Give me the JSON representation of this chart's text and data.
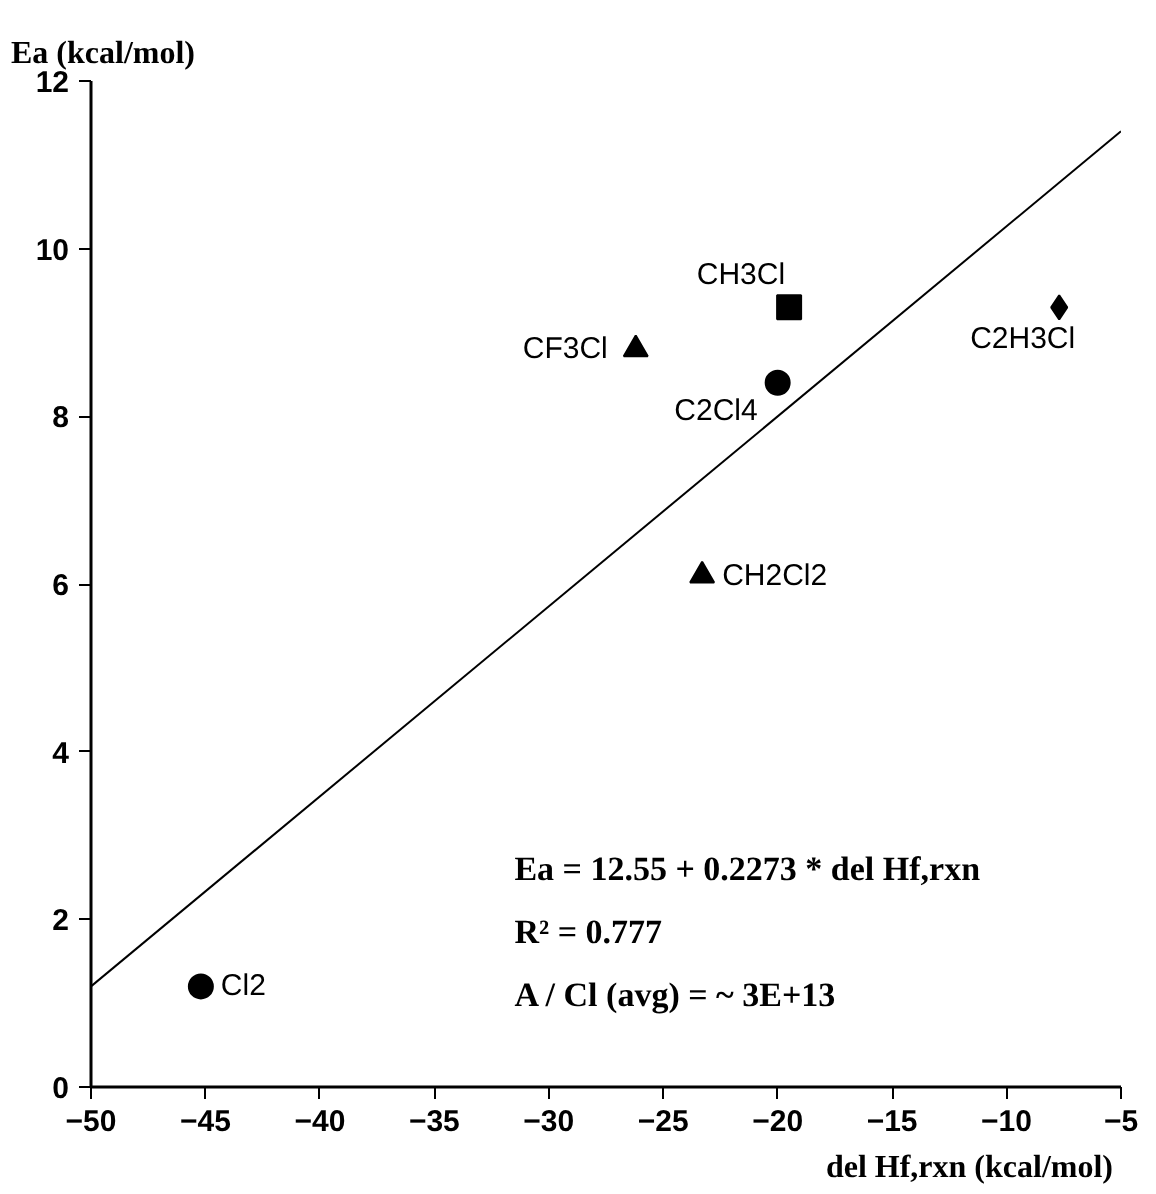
{
  "chart_data": {
    "type": "scatter",
    "xlabel": "del Hf,rxn  (kcal/mol)",
    "ylabel": "Ea (kcal/mol)",
    "xlim": [
      -50,
      -5
    ],
    "ylim": [
      0,
      12
    ],
    "xticks": [
      -50,
      -45,
      -40,
      -35,
      -30,
      -25,
      -20,
      -15,
      -10,
      -5
    ],
    "yticks": [
      0,
      2,
      4,
      6,
      8,
      10,
      12
    ],
    "grid": false,
    "series": [
      {
        "color": "#000000",
        "marker": "circle",
        "x": [
          -45.2
        ],
        "values": [
          1.2
        ]
      },
      {
        "color": "#000000",
        "marker": "square",
        "x": [
          -19.5
        ],
        "values": [
          9.3
        ]
      },
      {
        "color": "#000000",
        "marker": "triangle",
        "x": [
          -26.2
        ],
        "values": [
          8.8
        ]
      },
      {
        "color": "#000000",
        "marker": "circle",
        "x": [
          -20.0
        ],
        "values": [
          8.4
        ]
      },
      {
        "color": "#000000",
        "marker": "triangle",
        "x": [
          -23.3
        ],
        "values": [
          6.1
        ]
      },
      {
        "color": "#000000",
        "marker": "diamond",
        "x": [
          -7.7
        ],
        "values": [
          9.3
        ]
      },
      {
        "type": "line",
        "color": "#000000",
        "marker": "none",
        "x": [
          -50,
          -5
        ],
        "values": [
          1.2,
          11.4
        ]
      }
    ],
    "annotations": [
      {
        "text": "Cl2",
        "x": -45.2,
        "y": 1.2
      },
      {
        "text": "CH3Cl",
        "x": -19.5,
        "y": 9.3
      },
      {
        "text": "CF3Cl",
        "x": -26.2,
        "y": 8.8
      },
      {
        "text": "C2Cl4",
        "x": -20.0,
        "y": 8.4
      },
      {
        "text": "CH2Cl2",
        "x": -23.3,
        "y": 6.1
      },
      {
        "text": "C2H3Cl",
        "x": -7.7,
        "y": 9.3
      },
      "Ea = 12.55 + 0.2273 * del Hf,rxn",
      "R² = 0.777",
      "A / Cl (avg) = ~ 3E+13"
    ]
  }
}
